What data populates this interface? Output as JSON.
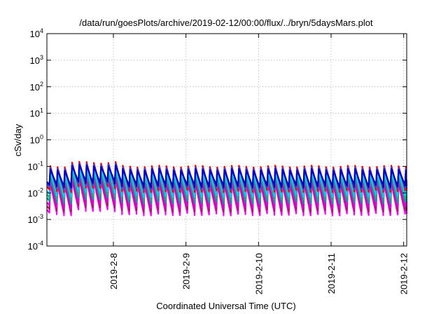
{
  "chart_data": {
    "type": "line",
    "title": "/data/run/goesPlots/archive/2019-02-12/00:00/flux/../bryn/5daysMars.plot",
    "xlabel": "Coordinated Universal Time (UTC)",
    "ylabel": "cSv/day",
    "x_scale": "time",
    "xlim": [
      "2019-02-07T02:00",
      "2019-02-12T01:00"
    ],
    "x_ticks": [
      "2019-2-8",
      "2019-2-9",
      "2019-2-10",
      "2019-2-11",
      "2019-2-12"
    ],
    "y_scale": "log",
    "ylim": [
      0.0001,
      10000
    ],
    "y_ticks": [
      {
        "base": "10",
        "exp": "-4"
      },
      {
        "base": "10",
        "exp": "-3"
      },
      {
        "base": "10",
        "exp": "-2"
      },
      {
        "base": "10",
        "exp": "-1"
      },
      {
        "base": "10",
        "exp": "0"
      },
      {
        "base": "10",
        "exp": "1"
      },
      {
        "base": "10",
        "exp": "2"
      },
      {
        "base": "10",
        "exp": "3"
      },
      {
        "base": "10",
        "exp": "4"
      }
    ],
    "grid": true,
    "legend": "none",
    "sawtooth_period_hours": 2.4,
    "series_colors": [
      "#ff00ff",
      "#a02060",
      "#e000e0",
      "#00a0a0",
      "#20b080",
      "#00d0ff",
      "#ff0000",
      "#2050ff",
      "#0000c0"
    ],
    "series_levels": {
      "peak": [
        0.022,
        0.028,
        0.035,
        0.045,
        0.055,
        0.065,
        0.1,
        0.085,
        0.075
      ],
      "trough": [
        0.0016,
        0.0022,
        0.003,
        0.0045,
        0.006,
        0.008,
        0.012,
        0.015,
        0.018
      ]
    },
    "early_enhancement": {
      "start": "2019-02-07T08:00",
      "end": "2019-02-08T02:00",
      "peak_factor": 1.4
    }
  }
}
